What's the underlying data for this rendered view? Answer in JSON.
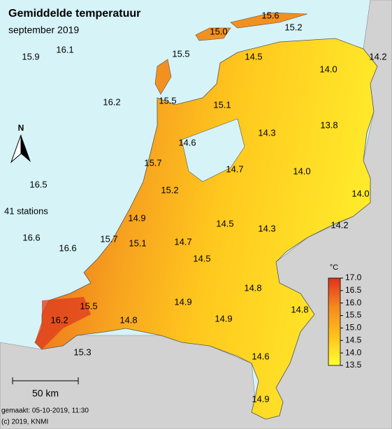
{
  "title": "Gemiddelde temperatuur",
  "subtitle": "september 2019",
  "north": "N",
  "station_count": "41 stations",
  "scale_bar": "50 km",
  "made": "gemaakt: 05-10-2019, 11:30",
  "copyright": "(c) 2019, KNMI",
  "stations": [
    "15.6",
    "15.0",
    "15.2",
    "15.9",
    "16.1",
    "15.5",
    "14.5",
    "14.2",
    "14.0",
    "16.2",
    "15.5",
    "15.1",
    "14.3",
    "13.8",
    "14.6",
    "15.7",
    "14.7",
    "14.0",
    "16.5",
    "15.2",
    "14.0",
    "14.9",
    "14.5",
    "14.3",
    "14.2",
    "16.6",
    "15.7",
    "15.1",
    "14.7",
    "16.6",
    "14.5",
    "14.8",
    "15.5",
    "14.9",
    "14.8",
    "14.8",
    "16.2",
    "14.9",
    "15.3",
    "14.6",
    "14.9"
  ],
  "legend": {
    "unit": "°C",
    "lim": [
      13.5,
      17
    ],
    "colors": [
      "#ffff33",
      "#ffc21a",
      "#f58a1f",
      "#e0301e"
    ],
    "ticks": [
      {
        "value": 17,
        "label": "17.0"
      },
      {
        "value": 16.5,
        "label": "16.5"
      },
      {
        "value": 16,
        "label": "16.0"
      },
      {
        "value": 15.5,
        "label": "15.5"
      },
      {
        "value": 15,
        "label": "15.0"
      },
      {
        "value": 14.5,
        "label": "14.5"
      },
      {
        "value": 14,
        "label": "14.0"
      },
      {
        "value": 13.5,
        "label": "13.5"
      }
    ]
  }
}
